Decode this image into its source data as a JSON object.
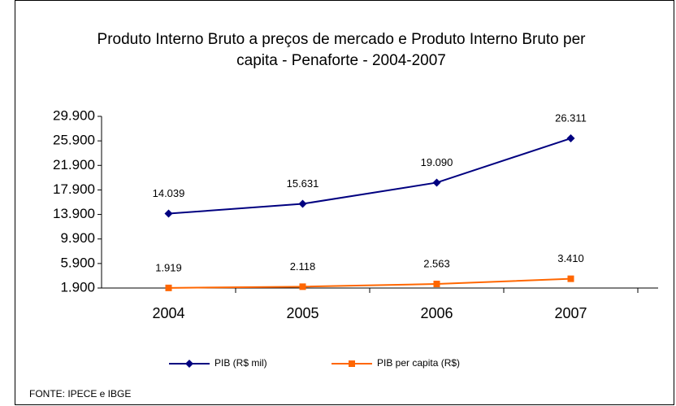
{
  "chart_data": {
    "type": "line",
    "title": "Produto Interno Bruto a preços de mercado e Produto Interno Bruto per capita - Penaforte - 2004-2007",
    "categories": [
      "2004",
      "2005",
      "2006",
      "2007"
    ],
    "series": [
      {
        "name": "PIB (R$ mil)",
        "color": "#000080",
        "marker": "diamond",
        "values": [
          14039,
          15631,
          19090,
          26311
        ],
        "value_labels": [
          "14.039",
          "15.631",
          "19.090",
          "26.311"
        ]
      },
      {
        "name": "PIB per capita (R$)",
        "color": "#ff6600",
        "marker": "square",
        "values": [
          1919,
          2118,
          2563,
          3410
        ],
        "value_labels": [
          "1.919",
          "2.118",
          "2.563",
          "3.410"
        ]
      }
    ],
    "ylim": [
      1900,
      29900
    ],
    "yticks": [
      {
        "value": 1900,
        "label": "1.900"
      },
      {
        "value": 5900,
        "label": "5.900"
      },
      {
        "value": 9900,
        "label": "9.900"
      },
      {
        "value": 13900,
        "label": "13.900"
      },
      {
        "value": 17900,
        "label": "17.900"
      },
      {
        "value": 21900,
        "label": "21.900"
      },
      {
        "value": 25900,
        "label": "25.900"
      },
      {
        "value": 29900,
        "label": "29.900"
      }
    ],
    "grid": false,
    "legend": "bottom",
    "source": "FONTE: IPECE e IBGE"
  }
}
